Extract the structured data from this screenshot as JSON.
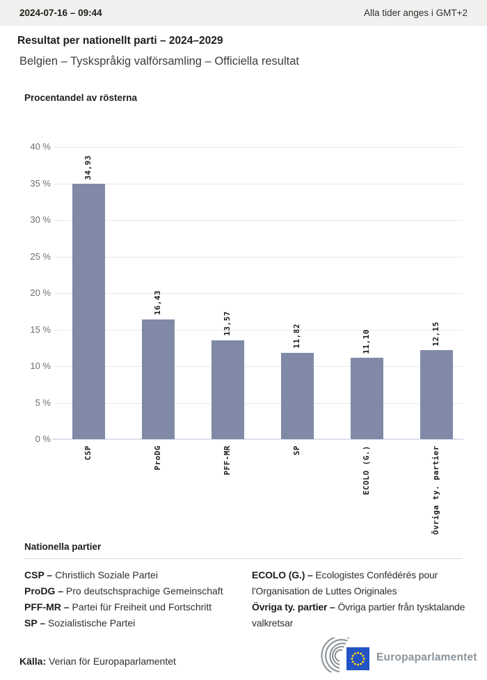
{
  "header": {
    "datetime": "2024-07-16 – 09:44",
    "timezone_note": "Alla tider anges i GMT+2"
  },
  "title": "Resultat per nationellt parti – 2024–2029",
  "subtitle": "Belgien – Tyskspråkig valförsamling – Officiella resultat",
  "chart_data": {
    "type": "bar",
    "title": "Procentandel av rösterna",
    "categories": [
      "CSP",
      "ProDG",
      "PFF-MR",
      "SP",
      "ECOLO (G.)",
      "Övriga ty. partier"
    ],
    "values": [
      34.93,
      16.43,
      13.57,
      11.82,
      11.1,
      12.15
    ],
    "value_labels": [
      "34,93",
      "16,43",
      "13,57",
      "11,82",
      "11,10",
      "12,15"
    ],
    "xlabel": "",
    "ylabel": "Procentandel av rösterna",
    "ylim": [
      0,
      40
    ],
    "ytick_step": 5,
    "ytick_labels": [
      "0 %",
      "5 %",
      "10 %",
      "15 %",
      "20 %",
      "25 %",
      "30 %",
      "35 %",
      "40 %"
    ],
    "grid": true,
    "legend_position": "none",
    "bar_color": "#8089a6",
    "gridline_color": "#e8e8e8",
    "baseline_color": "#dce1ef"
  },
  "legend": {
    "heading": "Nationella partier",
    "items_left": [
      {
        "abbr": "CSP –",
        "name": "Christlich Soziale Partei"
      },
      {
        "abbr": "ProDG –",
        "name": "Pro deutschsprachige Gemeinschaft"
      },
      {
        "abbr": "PFF-MR –",
        "name": "Partei für Freiheit und Fortschritt"
      },
      {
        "abbr": "SP –",
        "name": "Sozialistische Partei"
      }
    ],
    "items_right": [
      {
        "abbr": "ECOLO (G.) –",
        "name": "Ecologistes Confédérés pour l'Organisation de Luttes Originales"
      },
      {
        "abbr": "Övriga ty. partier –",
        "name": "Övriga partier från tysktalande valkretsar"
      }
    ]
  },
  "footer": {
    "source_label": "Källa:",
    "source_text": "Verian för Europaparlamentet",
    "logo_text": "Europaparlamentet"
  },
  "colors": {
    "topbar_bg": "#f0f0ee",
    "bar_fill": "#8089a6",
    "logo_gray": "#8b9399",
    "flag_blue": "#2254c5",
    "star_yellow": "#ffd617"
  }
}
